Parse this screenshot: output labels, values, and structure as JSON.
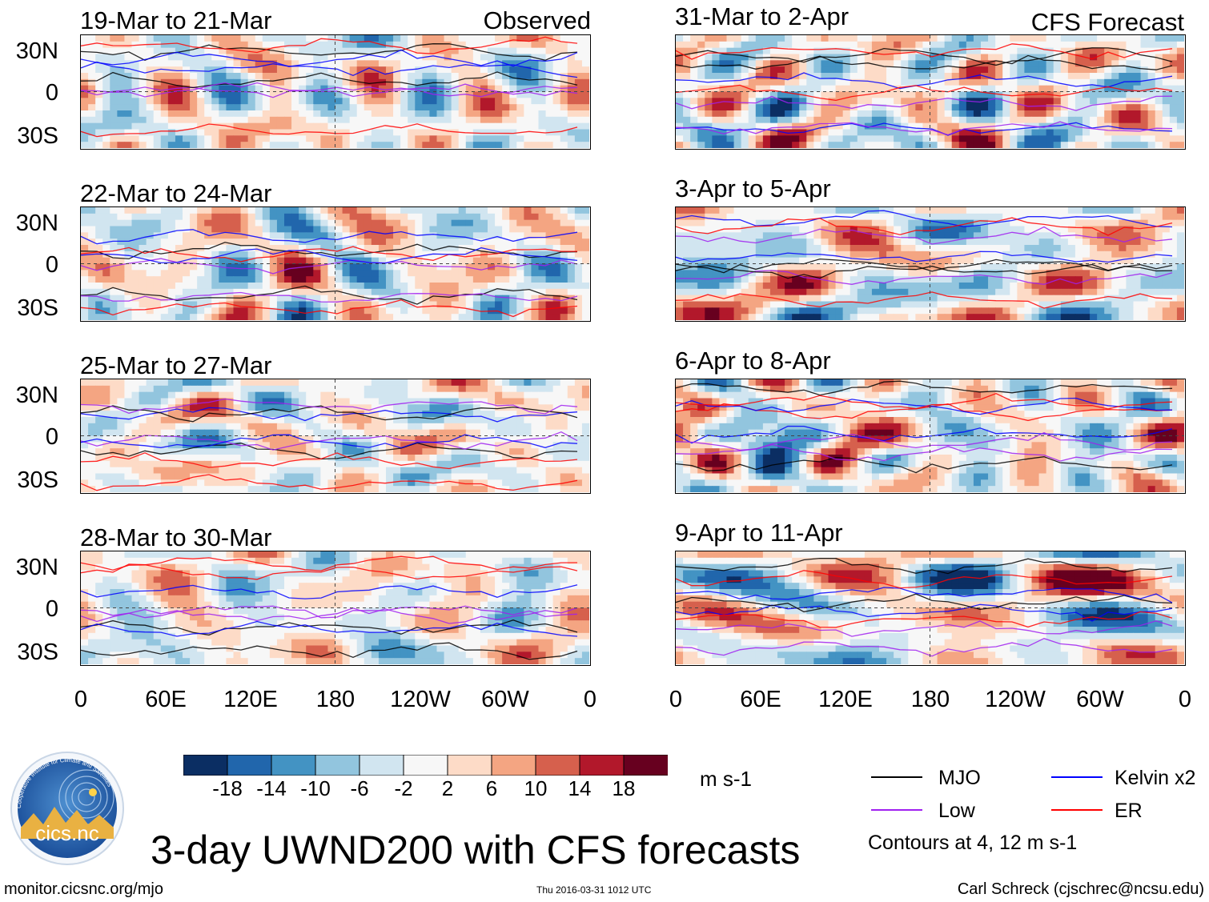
{
  "chart_data": {
    "type": "heatmap",
    "title": "3-day UWND200 with CFS forecasts",
    "variable": "UWND200",
    "units": "m s-1",
    "colorbar": {
      "levels": [
        -18,
        -14,
        -10,
        -6,
        -2,
        2,
        6,
        10,
        14,
        18
      ],
      "colors": [
        "#0b2e63",
        "#2166ac",
        "#4393c3",
        "#92c5de",
        "#d1e5f0",
        "#f7f7f7",
        "#fddbc7",
        "#f4a582",
        "#d6604d",
        "#b2182b",
        "#67001f"
      ]
    },
    "x_ticks": [
      "0",
      "60E",
      "120E",
      "180",
      "120W",
      "60W",
      "0"
    ],
    "y_ticks": [
      "30N",
      "0",
      "30S"
    ],
    "contours": {
      "text": "Contours at 4, 12 m s-1",
      "series": [
        {
          "name": "MJO",
          "color": "#000000"
        },
        {
          "name": "Kelvin x2",
          "color": "#0000ff"
        },
        {
          "name": "Low",
          "color": "#a020f0"
        },
        {
          "name": "ER",
          "color": "#ff0000"
        }
      ]
    },
    "left_column_label": "Observed",
    "right_column_label": "CFS Forecast",
    "panels": [
      {
        "period": "19-Mar to 21-Mar",
        "kind": "Observed"
      },
      {
        "period": "22-Mar to 24-Mar",
        "kind": "Observed"
      },
      {
        "period": "25-Mar to 27-Mar",
        "kind": "Observed"
      },
      {
        "period": "28-Mar to 30-Mar",
        "kind": "Observed"
      },
      {
        "period": "31-Mar to 2-Apr",
        "kind": "CFS Forecast"
      },
      {
        "period": "3-Apr to 5-Apr",
        "kind": "CFS Forecast"
      },
      {
        "period": "6-Apr to 8-Apr",
        "kind": "CFS Forecast"
      },
      {
        "period": "9-Apr to 11-Apr",
        "kind": "CFS Forecast"
      }
    ]
  },
  "colorbar_ticks": [
    "-18",
    "-14",
    "-10",
    "-6",
    "-2",
    "2",
    "6",
    "10",
    "14",
    "18"
  ],
  "units_label": "m s-1",
  "legend": {
    "mjo": "MJO",
    "kelvin": "Kelvin x2",
    "low": "Low",
    "er": "ER",
    "contours_note": "Contours at 4, 12 m s-1"
  },
  "footer": {
    "website": "monitor.cicsnc.org/mjo",
    "timestamp": "Thu 2016-03-31 1012 UTC",
    "author": "Carl Schreck (cjschrec@ncsu.edu)"
  },
  "logo": {
    "text": "cics.nc",
    "ring_text": "Cooperative Institute for Climate and Satellites"
  }
}
